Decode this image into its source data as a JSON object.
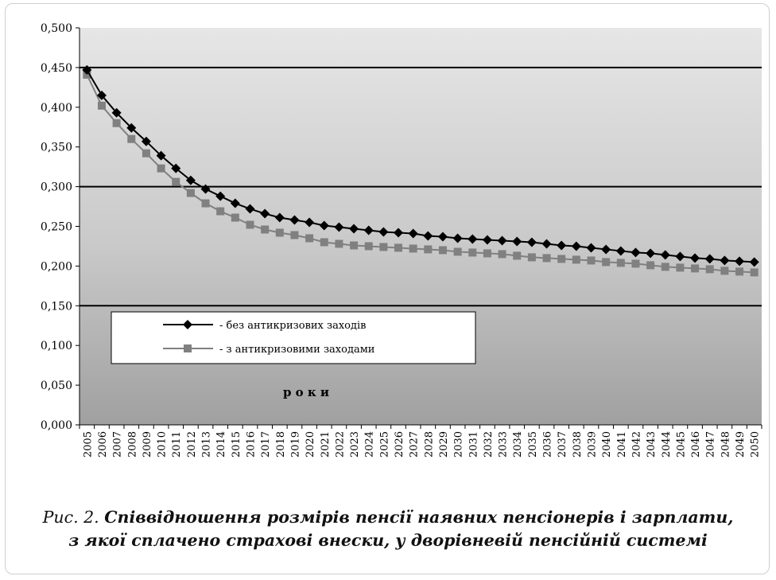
{
  "chart_data": {
    "type": "line",
    "y_tick_labels": [
      "0,000",
      "0,050",
      "0,100",
      "0,150",
      "0,200",
      "0,250",
      "0,300",
      "0,350",
      "0,400",
      "0,450",
      "0,500"
    ],
    "ylim": [
      0,
      0.5
    ],
    "x_tick_labels": [
      "2005",
      "2006",
      "2007",
      "2008",
      "2009",
      "2010",
      "2011",
      "2012",
      "2013",
      "2014",
      "2015",
      "2016",
      "2017",
      "2018",
      "2019",
      "2020",
      "2021",
      "2022",
      "2023",
      "2024",
      "2025",
      "2026",
      "2027",
      "2028",
      "2029",
      "2030",
      "2031",
      "2032",
      "2033",
      "2034",
      "2035",
      "2036",
      "2037",
      "2038",
      "2039",
      "2040",
      "2041",
      "2042",
      "2043",
      "2044",
      "2045",
      "2046",
      "2047",
      "2048",
      "2049",
      "2050"
    ],
    "xlabel": "р о к и",
    "grid_major_y": [
      0.15,
      0.3,
      0.45
    ],
    "plot_background": "gradient light grey (top) to dark grey (bottom)",
    "legend_position": "lower-left inside plot",
    "series": [
      {
        "name": "- без антикризових заходів",
        "color": "#000000",
        "marker": "diamond",
        "values": [
          0.447,
          0.415,
          0.393,
          0.374,
          0.357,
          0.339,
          0.323,
          0.308,
          0.297,
          0.288,
          0.279,
          0.272,
          0.266,
          0.261,
          0.258,
          0.255,
          0.251,
          0.249,
          0.247,
          0.245,
          0.243,
          0.242,
          0.241,
          0.238,
          0.237,
          0.235,
          0.234,
          0.233,
          0.232,
          0.231,
          0.23,
          0.228,
          0.226,
          0.225,
          0.223,
          0.221,
          0.219,
          0.217,
          0.216,
          0.214,
          0.212,
          0.21,
          0.209,
          0.207,
          0.206,
          0.205
        ]
      },
      {
        "name": "- з антикризовими заходами",
        "color": "#808080",
        "marker": "square",
        "values": [
          0.441,
          0.402,
          0.38,
          0.36,
          0.342,
          0.323,
          0.306,
          0.292,
          0.279,
          0.269,
          0.261,
          0.252,
          0.246,
          0.242,
          0.239,
          0.235,
          0.23,
          0.228,
          0.226,
          0.225,
          0.224,
          0.223,
          0.222,
          0.221,
          0.22,
          0.218,
          0.217,
          0.216,
          0.215,
          0.213,
          0.211,
          0.21,
          0.209,
          0.208,
          0.207,
          0.205,
          0.204,
          0.203,
          0.201,
          0.199,
          0.198,
          0.197,
          0.196,
          0.194,
          0.193,
          0.192
        ]
      }
    ]
  },
  "caption": {
    "label": "Рис. 2.",
    "title_line1": "Співвідношення розмірів пенсії наявних пенсіонерів і зарплати,",
    "title_line2": "з якої сплачено страхові внески, у дворівневій пенсійній системі"
  }
}
